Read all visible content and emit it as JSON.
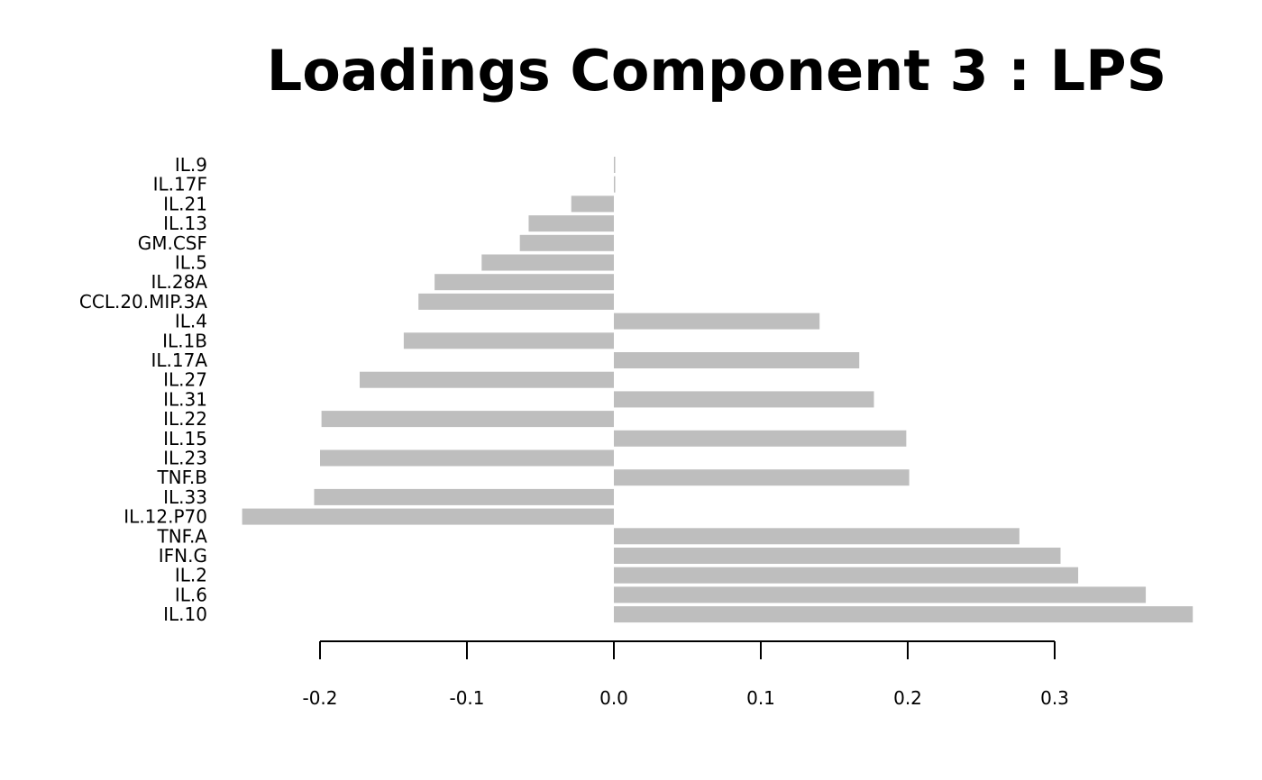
{
  "chart_data": {
    "type": "bar",
    "orientation": "horizontal",
    "title": "Loadings Component 3 : LPS",
    "xlabel": "",
    "ylabel": "",
    "grid": false,
    "bar_color": "#bebebe",
    "xlim": [
      -0.25,
      0.39
    ],
    "xticks": [
      -0.2,
      -0.1,
      0.0,
      0.1,
      0.2,
      0.3
    ],
    "xtick_labels": [
      "-0.2",
      "-0.1",
      "0.0",
      "0.1",
      "0.2",
      "0.3"
    ],
    "categories": [
      "IL.9",
      "IL.17F",
      "IL.21",
      "IL.13",
      "GM.CSF",
      "IL.5",
      "IL.28A",
      "CCL.20.MIP.3A",
      "IL.4",
      "IL.1B",
      "IL.17A",
      "IL.27",
      "IL.31",
      "IL.22",
      "IL.15",
      "IL.23",
      "TNF.B",
      "IL.33",
      "IL.12.P70",
      "TNF.A",
      "IFN.G",
      "IL.2",
      "IL.6",
      "IL.10"
    ],
    "values": [
      0.0,
      0.0,
      -0.029,
      -0.058,
      -0.064,
      -0.09,
      -0.122,
      -0.133,
      0.14,
      -0.143,
      0.167,
      -0.173,
      0.177,
      -0.199,
      0.199,
      -0.2,
      0.201,
      -0.204,
      -0.253,
      0.276,
      0.304,
      0.316,
      0.362,
      0.394
    ]
  }
}
